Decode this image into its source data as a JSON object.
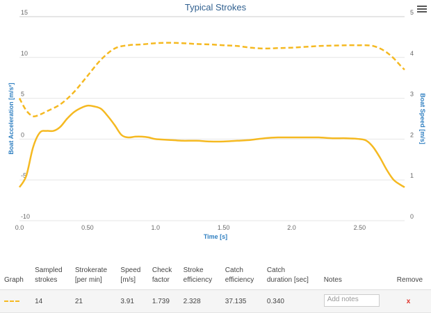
{
  "chart_data": {
    "type": "line",
    "title": "Typical Strokes",
    "xlabel": "Time [s]",
    "ylabel_left": "Boat Acceleration [m/s²]",
    "ylabel_right": "Boat Speed [m/s]",
    "xlim": [
      0,
      2.83
    ],
    "ylim_left": [
      -10,
      15
    ],
    "ylim_right": [
      0,
      5
    ],
    "x_ticks": [
      "0.0",
      "0.50",
      "1.0",
      "1.50",
      "2.0",
      "2.50"
    ],
    "y_ticks_left": [
      "-10",
      "-5",
      "0",
      "5",
      "10",
      "15"
    ],
    "y_ticks_right": [
      "0",
      "1",
      "2",
      "3",
      "4",
      "5"
    ],
    "grid": true,
    "series": [
      {
        "axis": "left",
        "style": "solid",
        "color": "#f5b921",
        "x": [
          0,
          0.05,
          0.1,
          0.15,
          0.2,
          0.25,
          0.3,
          0.35,
          0.4,
          0.45,
          0.5,
          0.55,
          0.6,
          0.65,
          0.7,
          0.75,
          0.8,
          0.85,
          0.9,
          0.95,
          1.0,
          1.1,
          1.2,
          1.3,
          1.4,
          1.5,
          1.6,
          1.7,
          1.8,
          1.9,
          2.0,
          2.1,
          2.2,
          2.3,
          2.4,
          2.5,
          2.55,
          2.6,
          2.65,
          2.7,
          2.75,
          2.8,
          2.83
        ],
        "y": [
          -5.9,
          -4.5,
          -1.0,
          0.8,
          1.0,
          1.0,
          1.5,
          2.5,
          3.3,
          3.8,
          4.1,
          4.0,
          3.7,
          2.8,
          1.7,
          0.5,
          0.2,
          0.3,
          0.3,
          0.2,
          0.0,
          -0.1,
          -0.2,
          -0.2,
          -0.3,
          -0.3,
          -0.2,
          -0.1,
          0.1,
          0.2,
          0.2,
          0.2,
          0.2,
          0.1,
          0.1,
          0.0,
          -0.2,
          -1.0,
          -2.3,
          -3.8,
          -5.0,
          -5.6,
          -5.9
        ]
      },
      {
        "axis": "right",
        "style": "dashed",
        "color": "#f5b921",
        "x": [
          0,
          0.05,
          0.1,
          0.15,
          0.2,
          0.3,
          0.4,
          0.5,
          0.6,
          0.7,
          0.8,
          0.9,
          1.0,
          1.1,
          1.2,
          1.3,
          1.4,
          1.5,
          1.6,
          1.7,
          1.8,
          1.9,
          2.0,
          2.1,
          2.2,
          2.3,
          2.4,
          2.5,
          2.55,
          2.6,
          2.65,
          2.7,
          2.75,
          2.8,
          2.83
        ],
        "y": [
          3.0,
          2.7,
          2.56,
          2.6,
          2.68,
          2.85,
          3.15,
          3.55,
          3.95,
          4.22,
          4.3,
          4.32,
          4.35,
          4.36,
          4.35,
          4.33,
          4.32,
          4.3,
          4.28,
          4.24,
          4.22,
          4.23,
          4.24,
          4.26,
          4.28,
          4.29,
          4.3,
          4.3,
          4.3,
          4.28,
          4.22,
          4.12,
          3.98,
          3.8,
          3.7
        ]
      }
    ]
  },
  "ui": {
    "menu_icon": "hamburger-menu-icon"
  },
  "table": {
    "headers": {
      "graph": "Graph",
      "sampled_strokes": [
        "Sampled",
        "strokes"
      ],
      "strokerate": [
        "Strokerate",
        "[per min]"
      ],
      "speed": [
        "Speed",
        "[m/s]"
      ],
      "check_factor": [
        "Check",
        "factor"
      ],
      "stroke_efficiency": [
        "Stroke",
        "efficiency"
      ],
      "catch_efficiency": [
        "Catch",
        "efficiency"
      ],
      "catch_duration": [
        "Catch",
        "duration [sec]"
      ],
      "notes": "Notes",
      "remove": "Remove"
    },
    "rows": [
      {
        "sampled_strokes": "14",
        "strokerate": "21",
        "speed": "3.91",
        "check_factor": "1.739",
        "stroke_efficiency": "2.328",
        "catch_efficiency": "37.135",
        "catch_duration": "0.340",
        "notes_placeholder": "Add notes",
        "remove_label": "x"
      }
    ]
  }
}
